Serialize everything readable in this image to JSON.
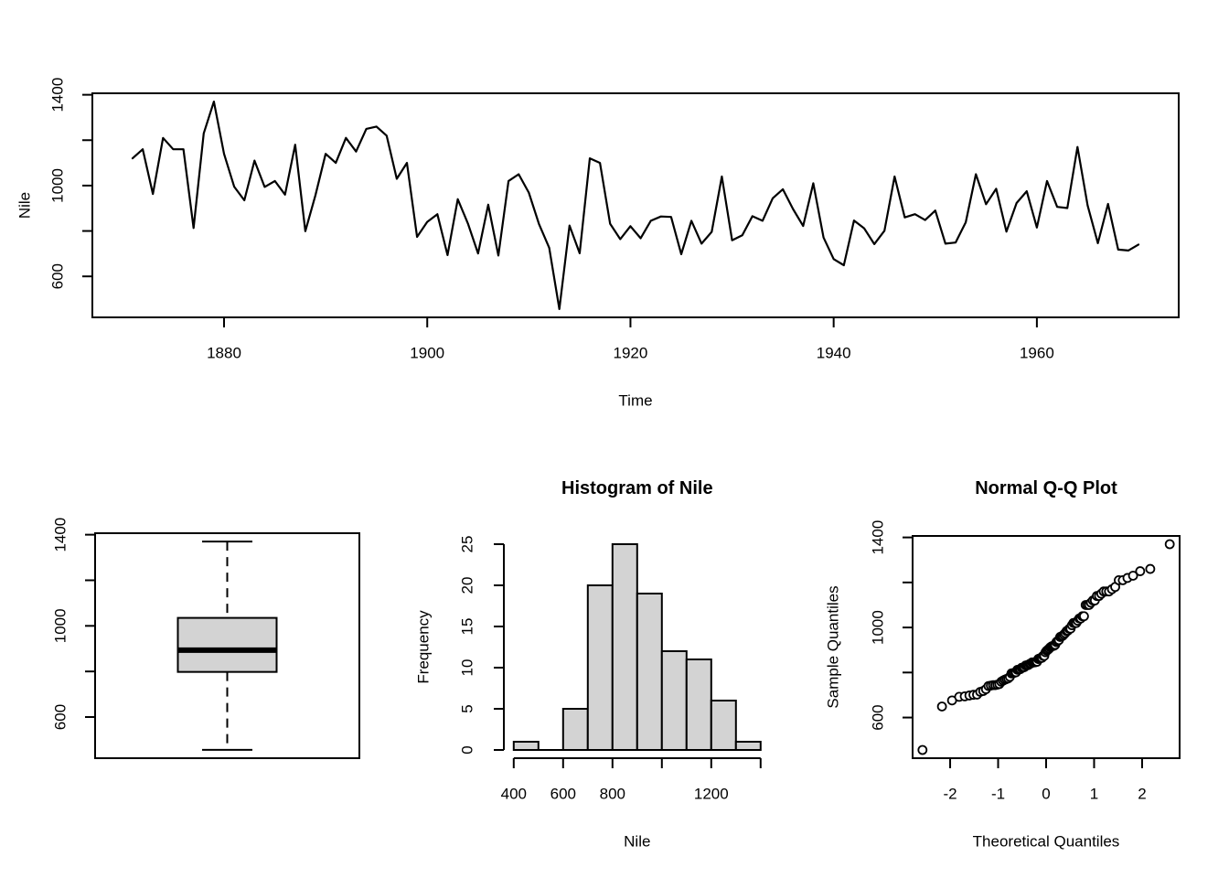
{
  "colors": {
    "foreground": "#000000",
    "background": "#ffffff",
    "fill_gray": "#d3d3d3"
  },
  "chart_data": [
    {
      "id": "timeseries",
      "type": "line",
      "title": "",
      "xlabel": "Time",
      "ylabel": "Nile",
      "x_start": 1871,
      "values": [
        1120,
        1160,
        963,
        1210,
        1160,
        1160,
        813,
        1230,
        1370,
        1140,
        995,
        935,
        1110,
        994,
        1020,
        960,
        1180,
        799,
        958,
        1140,
        1100,
        1210,
        1150,
        1250,
        1260,
        1220,
        1030,
        1100,
        774,
        840,
        874,
        694,
        940,
        833,
        701,
        916,
        692,
        1020,
        1050,
        969,
        831,
        726,
        456,
        824,
        702,
        1120,
        1100,
        832,
        764,
        821,
        768,
        845,
        864,
        862,
        698,
        845,
        744,
        796,
        1040,
        759,
        781,
        865,
        845,
        944,
        984,
        897,
        822,
        1010,
        771,
        676,
        649,
        846,
        812,
        742,
        801,
        1040,
        860,
        874,
        848,
        890,
        744,
        749,
        838,
        1050,
        918,
        986,
        797,
        923,
        975,
        815,
        1020,
        906,
        901,
        1170,
        912,
        746,
        919,
        718,
        714,
        740
      ],
      "xlim": [
        1867.04,
        1973.96
      ],
      "ylim": [
        419.44,
        1406.56
      ],
      "x_ticks": [
        {
          "v": 1880,
          "label": "1880"
        },
        {
          "v": 1900,
          "label": "1900"
        },
        {
          "v": 1920,
          "label": "1920"
        },
        {
          "v": 1940,
          "label": "1940"
        },
        {
          "v": 1960,
          "label": "1960"
        }
      ],
      "y_ticks": [
        {
          "v": 600,
          "label": "600"
        },
        {
          "v": 800,
          "label": ""
        },
        {
          "v": 1000,
          "label": "1000"
        },
        {
          "v": 1200,
          "label": ""
        },
        {
          "v": 1400,
          "label": "1400"
        }
      ],
      "grid": false,
      "legend": false
    },
    {
      "id": "boxplot",
      "type": "boxplot",
      "title": "",
      "xlabel": "",
      "ylabel": "",
      "stats": {
        "lower_whisker": 456,
        "q1": 798,
        "median": 893.5,
        "q3": 1035,
        "upper_whisker": 1370
      },
      "outliers": [],
      "ylim": [
        419.44,
        1406.56
      ],
      "y_ticks": [
        {
          "v": 600,
          "label": "600"
        },
        {
          "v": 800,
          "label": ""
        },
        {
          "v": 1000,
          "label": "1000"
        },
        {
          "v": 1200,
          "label": ""
        },
        {
          "v": 1400,
          "label": "1400"
        }
      ]
    },
    {
      "id": "histogram",
      "type": "bar",
      "title": "Histogram of Nile",
      "xlabel": "Nile",
      "ylabel": "Frequency",
      "bin_start": 400,
      "bin_width": 100,
      "counts": [
        1,
        0,
        5,
        20,
        25,
        19,
        12,
        11,
        6,
        1
      ],
      "xlim": [
        360,
        1440
      ],
      "ylim": [
        -1,
        26
      ],
      "x_ticks": [
        {
          "v": 400,
          "label": "400"
        },
        {
          "v": 600,
          "label": "600"
        },
        {
          "v": 800,
          "label": "800"
        },
        {
          "v": 1000,
          "label": ""
        },
        {
          "v": 1200,
          "label": "1200"
        },
        {
          "v": 1400,
          "label": ""
        }
      ],
      "y_ticks": [
        {
          "v": 0,
          "label": "0"
        },
        {
          "v": 5,
          "label": "5"
        },
        {
          "v": 10,
          "label": "10"
        },
        {
          "v": 15,
          "label": "15"
        },
        {
          "v": 20,
          "label": "20"
        },
        {
          "v": 25,
          "label": "25"
        }
      ]
    },
    {
      "id": "qqplot",
      "type": "scatter",
      "title": "Normal Q-Q Plot",
      "xlabel": "Theoretical Quantiles",
      "ylabel": "Sample Quantiles",
      "sample_quantiles_sorted": [
        456,
        649,
        676,
        692,
        694,
        698,
        701,
        702,
        714,
        718,
        726,
        740,
        742,
        744,
        744,
        746,
        749,
        759,
        764,
        768,
        771,
        774,
        781,
        796,
        797,
        799,
        801,
        812,
        813,
        815,
        821,
        822,
        824,
        831,
        832,
        833,
        838,
        840,
        845,
        845,
        845,
        846,
        848,
        860,
        862,
        864,
        865,
        874,
        874,
        890,
        897,
        901,
        906,
        912,
        916,
        918,
        919,
        923,
        935,
        940,
        944,
        958,
        960,
        963,
        969,
        975,
        984,
        986,
        994,
        995,
        1010,
        1020,
        1020,
        1020,
        1030,
        1040,
        1040,
        1050,
        1050,
        1100,
        1100,
        1100,
        1110,
        1120,
        1120,
        1140,
        1140,
        1150,
        1160,
        1160,
        1160,
        1170,
        1180,
        1210,
        1210,
        1220,
        1230,
        1250,
        1260,
        1370
      ],
      "xlim": [
        -2.782,
        2.782
      ],
      "ylim": [
        419.44,
        1406.56
      ],
      "x_ticks": [
        {
          "v": -2,
          "label": "-2"
        },
        {
          "v": -1,
          "label": "-1"
        },
        {
          "v": 0,
          "label": "0"
        },
        {
          "v": 1,
          "label": "1"
        },
        {
          "v": 2,
          "label": "2"
        }
      ],
      "y_ticks": [
        {
          "v": 600,
          "label": "600"
        },
        {
          "v": 800,
          "label": ""
        },
        {
          "v": 1000,
          "label": "1000"
        },
        {
          "v": 1200,
          "label": ""
        },
        {
          "v": 1400,
          "label": "1400"
        }
      ]
    }
  ]
}
